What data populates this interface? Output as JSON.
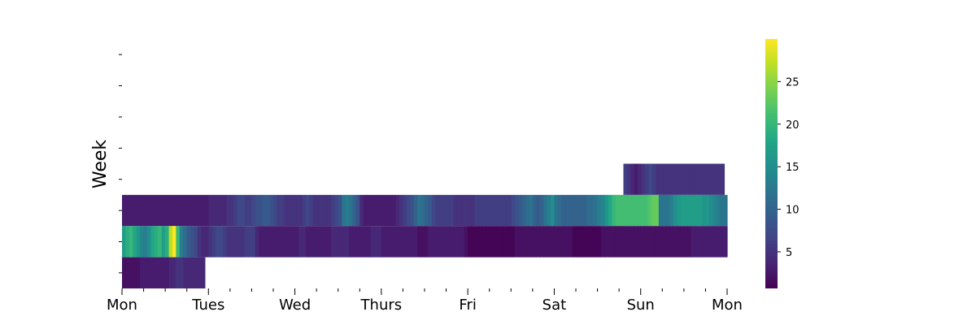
{
  "chart_data": {
    "type": "heatmap",
    "title": "",
    "xlabel": "",
    "ylabel": "Week",
    "x_tick_labels": [
      "Mon",
      "Tues",
      "Wed",
      "Thurs",
      "Fri",
      "Sat",
      "Sun",
      "Mon"
    ],
    "minor_ticks_per_day": 4,
    "colormap": "viridis",
    "color_range": [
      0.7,
      30
    ],
    "colorbar": {
      "ticks": [
        5,
        10,
        15,
        20,
        25
      ],
      "position": "right"
    },
    "grid": false,
    "weeks": 8,
    "samples_per_day": 24,
    "rows": [
      {
        "week": 1,
        "segments": []
      },
      {
        "week": 2,
        "segments": []
      },
      {
        "week": 3,
        "segments": []
      },
      {
        "week": 4,
        "segments": []
      },
      {
        "week": 5,
        "segments": [
          {
            "start_day": 5.8,
            "values": [
              6,
              5,
              4,
              3,
              4,
              5,
              6,
              7,
              6,
              5,
              5,
              5,
              5,
              5,
              5,
              5,
              5,
              5,
              5,
              5,
              5,
              5,
              5,
              5,
              5,
              5,
              5,
              5
            ]
          }
        ]
      },
      {
        "week": 6,
        "segments": [
          {
            "start_day": 0,
            "values": [
              3,
              3,
              3,
              3,
              3,
              3,
              3,
              3,
              3,
              3,
              3,
              3,
              3,
              3,
              3,
              3,
              3,
              3,
              3,
              3,
              3,
              3,
              3,
              3,
              4,
              4,
              4,
              4,
              4,
              5,
              5,
              6,
              7,
              7,
              6,
              6,
              7,
              8,
              8,
              9,
              9,
              8,
              7,
              6,
              6,
              5,
              5,
              5,
              5,
              5,
              6,
              7,
              6,
              5,
              5,
              5,
              5,
              5,
              6,
              7,
              8,
              12,
              13,
              12,
              10,
              8,
              4,
              3,
              3,
              3,
              3,
              3,
              3,
              3,
              3,
              3,
              4,
              5,
              6,
              7,
              8,
              10,
              12,
              11,
              10,
              9,
              7,
              6,
              6,
              6,
              6,
              6,
              5,
              5,
              5,
              5,
              5,
              5,
              6,
              6,
              6,
              6,
              6,
              6,
              6,
              6,
              6,
              6,
              7,
              8,
              9,
              10,
              11,
              12,
              10,
              9,
              10,
              12,
              13,
              15,
              12,
              11,
              10,
              10,
              10,
              10,
              10,
              10,
              10,
              11,
              11,
              12,
              13,
              14,
              16,
              18,
              20,
              21,
              21,
              21,
              21,
              21,
              21,
              21,
              21,
              21,
              22,
              23,
              23,
              12,
              12,
              12,
              13,
              15,
              16,
              17,
              17,
              17,
              17,
              17,
              17,
              16,
              16,
              15,
              14,
              13,
              12,
              12
            ]
          }
        ]
      },
      {
        "week": 7,
        "segments": [
          {
            "start_day": 0,
            "values": [
              17,
              19,
              20,
              18,
              16,
              14,
              13,
              15,
              18,
              19,
              20,
              17,
              19,
              27,
              30,
              20,
              13,
              11,
              9,
              8,
              7,
              5,
              4,
              4,
              5,
              6,
              7,
              7,
              6,
              5,
              5,
              5,
              5,
              5,
              6,
              6,
              6,
              4,
              3,
              3,
              3,
              3,
              3,
              3,
              3,
              3,
              3,
              3,
              3,
              4,
              4,
              3,
              3,
              3,
              3,
              3,
              3,
              3,
              4,
              4,
              4,
              4,
              4,
              3,
              3,
              3,
              3,
              3,
              3,
              4,
              4,
              4,
              3,
              3,
              3,
              3,
              3,
              3,
              3,
              3,
              3,
              3,
              2,
              2,
              2,
              3,
              3,
              3,
              3,
              3,
              3,
              3,
              3,
              3,
              3,
              2,
              1,
              1,
              1,
              1,
              1,
              1,
              1,
              1,
              1,
              1,
              1,
              1,
              1,
              2,
              2,
              2,
              2,
              2,
              2,
              2,
              2,
              2,
              2,
              2,
              2,
              2,
              2,
              2,
              2,
              1,
              1,
              1,
              1,
              1,
              1,
              1,
              1,
              2,
              2,
              2,
              2,
              2,
              2,
              2,
              2,
              2,
              2,
              2,
              2,
              2,
              2,
              2,
              2,
              2,
              2,
              2,
              2,
              2,
              2,
              2,
              2,
              2,
              3,
              3,
              3,
              3,
              3,
              3,
              3,
              3,
              3,
              3
            ]
          }
        ]
      },
      {
        "week": 8,
        "segments": [
          {
            "start_day": 0,
            "values": [
              2,
              2,
              2,
              2,
              2,
              3,
              3,
              3,
              3,
              3,
              3,
              3,
              3,
              4,
              4,
              5,
              5,
              4,
              4,
              4,
              4,
              4,
              4
            ]
          }
        ]
      }
    ]
  }
}
